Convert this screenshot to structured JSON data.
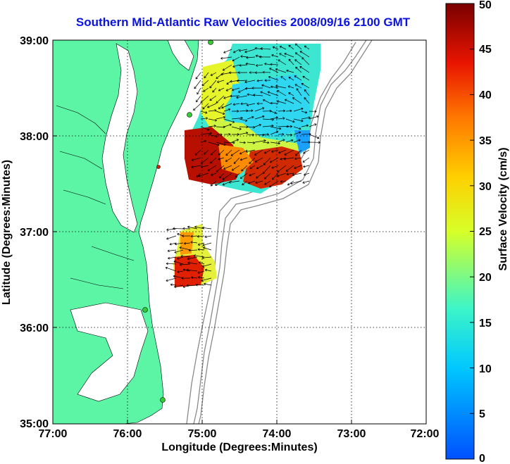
{
  "title": "Southern Mid-Atlantic Raw Velocities 2008/09/16 2100 GMT",
  "x_axis": {
    "label": "Longitude (Degrees:Minutes)",
    "ticks": [
      "77:00",
      "76:00",
      "75:00",
      "74:00",
      "73:00",
      "72:00"
    ]
  },
  "y_axis": {
    "label": "Latitude (Degrees:Minutes)",
    "ticks": [
      "39:00",
      "38:00",
      "37:00",
      "36:00",
      "35:00"
    ]
  },
  "colorbar": {
    "label": "Surface Velocity (cm/s)",
    "ticks": [
      "50",
      "45",
      "40",
      "35",
      "30",
      "25",
      "20",
      "15",
      "10",
      "5",
      "0"
    ],
    "range": [
      0,
      50
    ],
    "colormap": "jet"
  },
  "map": {
    "lon_range": [
      -77,
      -72
    ],
    "lat_range": [
      35,
      39
    ],
    "grid": true,
    "land_color": "#5cf5a5",
    "bathymetry_color": "#888888",
    "station_color": "#33cc33"
  }
}
